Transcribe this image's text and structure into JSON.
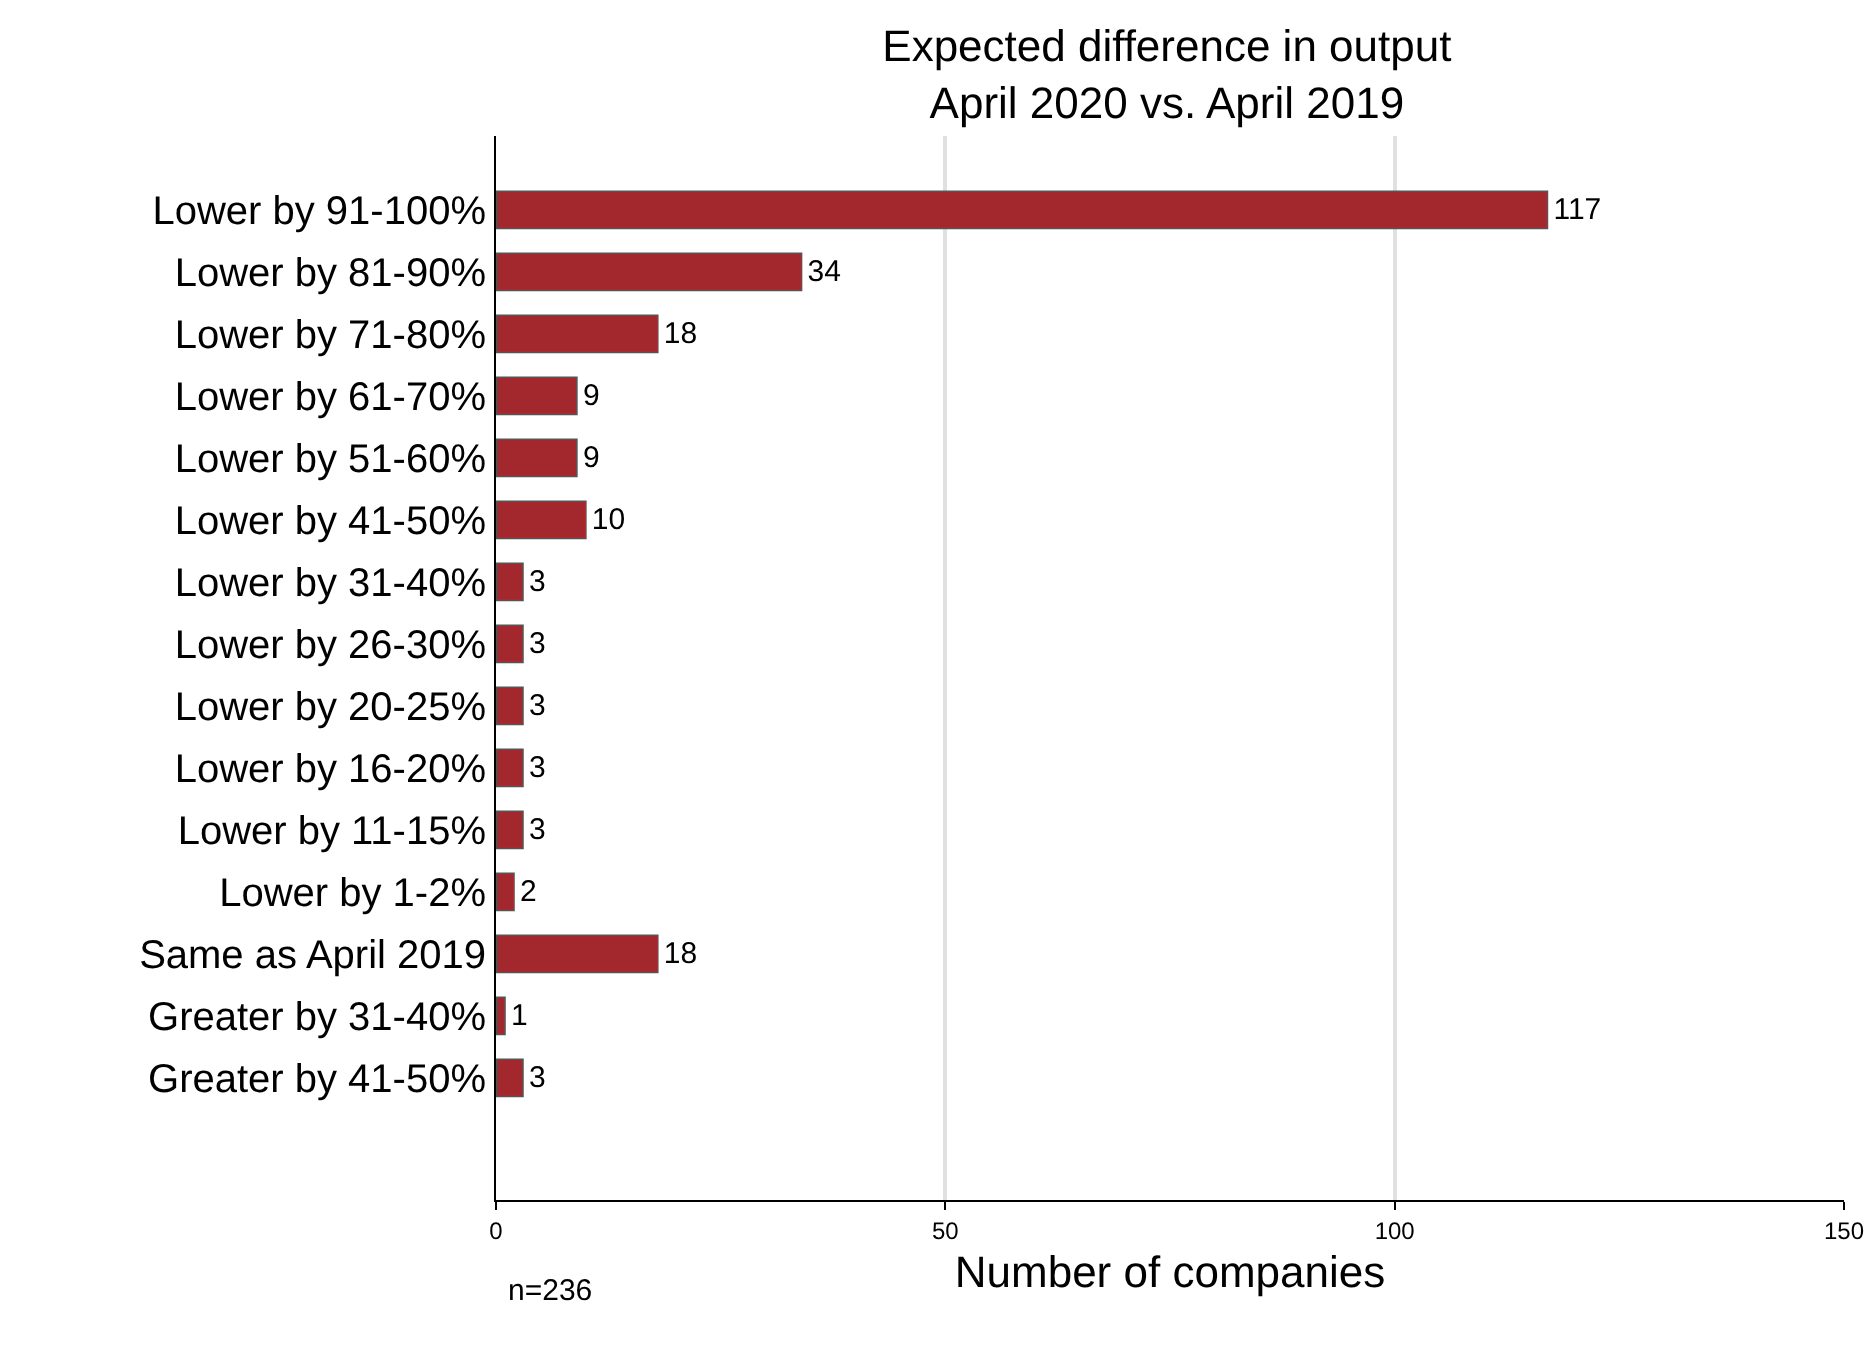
{
  "chart_data": {
    "type": "bar",
    "orientation": "horizontal",
    "title": "Expected difference in output\nApril 2020 vs. April 2019",
    "xlabel": "Number of companies",
    "categories": [
      "Lower by 91-100%",
      "Lower by 81-90%",
      "Lower by 71-80%",
      "Lower by 61-70%",
      "Lower by 51-60%",
      "Lower by 41-50%",
      "Lower by 31-40%",
      "Lower by 26-30%",
      "Lower by 20-25%",
      "Lower by 16-20%",
      "Lower by 11-15%",
      "Lower by 1-2%",
      "Same as April 2019",
      "Greater by 31-40%",
      "Greater by 41-50%"
    ],
    "values": [
      117,
      34,
      18,
      9,
      9,
      10,
      3,
      3,
      3,
      3,
      3,
      2,
      18,
      1,
      3
    ],
    "color": "#a3282e",
    "xlim": [
      0,
      150
    ],
    "xticks": [
      0,
      50,
      100,
      150
    ],
    "grid": "x",
    "data_labels": true,
    "annotations": [
      "n=236"
    ]
  }
}
